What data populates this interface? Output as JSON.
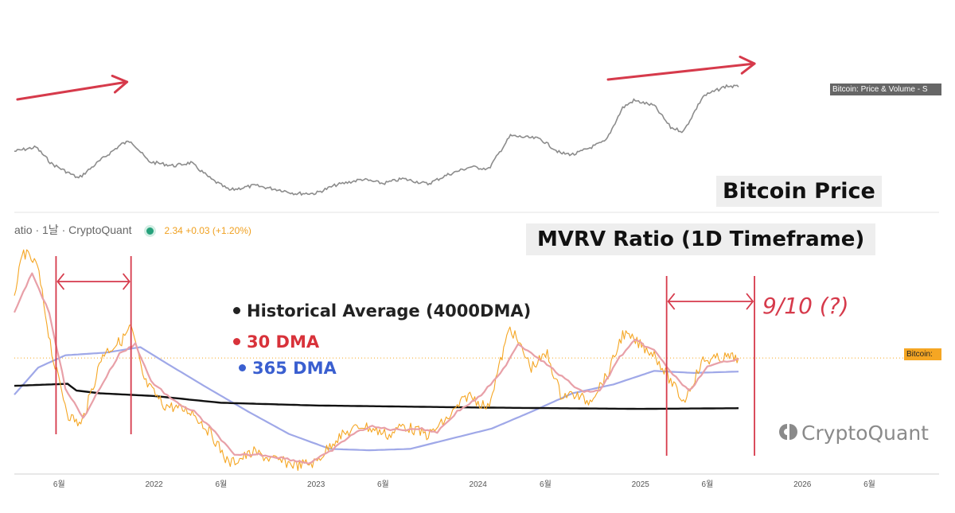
{
  "price_panel": {
    "label": "Bitcoin Price",
    "price_tag": "Bitcoin: Price & Volume - S"
  },
  "mvrv_panel": {
    "label": "MVRV Ratio (1D Timeframe)",
    "indicator_header": {
      "name": "atio · 1날 · CryptoQuant",
      "value": "2.34 +0.03 (+1.20%)"
    },
    "value_tag": "Bitcoin:"
  },
  "legend": [
    {
      "label": "Historical Average (4000DMA)",
      "color": "#222222"
    },
    {
      "label": "30 DMA",
      "color": "#d8323a"
    },
    {
      "label": "365 DMA",
      "color": "#3a5fd0"
    }
  ],
  "annotation": {
    "cycle_note": "9/10 (?)",
    "color": "#d63a4b"
  },
  "watermark": "CryptoQuant",
  "chart_data": {
    "type": "line",
    "title": "",
    "x_ticks": [
      {
        "date": "2021-06-01",
        "label": "6월"
      },
      {
        "date": "2022-01-01",
        "label": "2022"
      },
      {
        "date": "2022-06-01",
        "label": "6월"
      },
      {
        "date": "2023-01-01",
        "label": "2023"
      },
      {
        "date": "2023-06-01",
        "label": "6월"
      },
      {
        "date": "2024-01-01",
        "label": "2024"
      },
      {
        "date": "2024-06-01",
        "label": "6월"
      },
      {
        "date": "2025-01-01",
        "label": "2025"
      },
      {
        "date": "2025-06-01",
        "label": "6월"
      },
      {
        "date": "2026-01-01",
        "label": "2026"
      },
      {
        "date": "2026-06-01",
        "label": "6월"
      }
    ],
    "xlim": [
      "2021-02-20",
      "2026-11-05"
    ],
    "price": {
      "color": "#8c8c8c",
      "ylim": [
        15000,
        130000
      ],
      "points": [
        [
          "2021-02-20",
          57000
        ],
        [
          "2021-04-10",
          61000
        ],
        [
          "2021-05-15",
          45000
        ],
        [
          "2021-07-15",
          31000
        ],
        [
          "2021-09-01",
          48000
        ],
        [
          "2021-10-20",
          64000
        ],
        [
          "2021-11-10",
          67000
        ],
        [
          "2021-12-20",
          47000
        ],
        [
          "2022-02-15",
          43000
        ],
        [
          "2022-03-25",
          46000
        ],
        [
          "2022-05-10",
          30000
        ],
        [
          "2022-06-20",
          19500
        ],
        [
          "2022-08-15",
          24000
        ],
        [
          "2022-10-15",
          19500
        ],
        [
          "2022-11-15",
          16300
        ],
        [
          "2022-12-31",
          16500
        ],
        [
          "2023-02-15",
          24500
        ],
        [
          "2023-04-15",
          30000
        ],
        [
          "2023-06-01",
          26000
        ],
        [
          "2023-07-15",
          30500
        ],
        [
          "2023-09-10",
          25500
        ],
        [
          "2023-10-25",
          34500
        ],
        [
          "2023-12-15",
          42000
        ],
        [
          "2024-01-25",
          40000
        ],
        [
          "2024-03-14",
          72000
        ],
        [
          "2024-05-20",
          69000
        ],
        [
          "2024-07-05",
          55000
        ],
        [
          "2024-08-05",
          54000
        ],
        [
          "2024-10-15",
          67000
        ],
        [
          "2024-11-22",
          99000
        ],
        [
          "2024-12-17",
          106000
        ],
        [
          "2025-02-01",
          101000
        ],
        [
          "2025-03-10",
          80000
        ],
        [
          "2025-04-08",
          76000
        ],
        [
          "2025-05-22",
          110000
        ],
        [
          "2025-07-14",
          120000
        ],
        [
          "2025-08-10",
          119000
        ]
      ]
    },
    "mvrv": {
      "ylim": [
        0.7,
        4.1
      ],
      "current_value": 2.34,
      "series": [
        {
          "name": "MVRV Ratio",
          "color": "#f5a623",
          "points": [
            [
              "2021-02-20",
              3.3
            ],
            [
              "2021-03-13",
              3.9
            ],
            [
              "2021-04-13",
              3.7
            ],
            [
              "2021-05-19",
              2.3
            ],
            [
              "2021-06-22",
              1.5
            ],
            [
              "2021-07-20",
              1.35
            ],
            [
              "2021-08-20",
              2.0
            ],
            [
              "2021-09-07",
              2.4
            ],
            [
              "2021-10-20",
              2.6
            ],
            [
              "2021-11-10",
              2.8
            ],
            [
              "2021-12-10",
              2.0
            ],
            [
              "2022-01-22",
              1.65
            ],
            [
              "2022-03-28",
              1.55
            ],
            [
              "2022-05-12",
              1.2
            ],
            [
              "2022-06-18",
              0.78
            ],
            [
              "2022-08-14",
              0.95
            ],
            [
              "2022-09-20",
              0.85
            ],
            [
              "2022-11-21",
              0.76
            ],
            [
              "2022-12-31",
              0.8
            ],
            [
              "2023-02-15",
              1.15
            ],
            [
              "2023-04-14",
              1.35
            ],
            [
              "2023-06-15",
              1.2
            ],
            [
              "2023-07-15",
              1.35
            ],
            [
              "2023-09-11",
              1.2
            ],
            [
              "2023-10-25",
              1.45
            ],
            [
              "2023-12-10",
              1.8
            ],
            [
              "2024-01-23",
              1.6
            ],
            [
              "2024-03-13",
              2.8
            ],
            [
              "2024-04-30",
              2.2
            ],
            [
              "2024-06-05",
              2.4
            ],
            [
              "2024-07-05",
              1.8
            ],
            [
              "2024-08-05",
              1.8
            ],
            [
              "2024-09-06",
              1.7
            ],
            [
              "2024-10-20",
              2.1
            ],
            [
              "2024-11-22",
              2.7
            ],
            [
              "2024-12-17",
              2.6
            ],
            [
              "2025-02-01",
              2.4
            ],
            [
              "2025-03-10",
              2.0
            ],
            [
              "2025-04-08",
              1.7
            ],
            [
              "2025-05-22",
              2.3
            ],
            [
              "2025-07-14",
              2.35
            ],
            [
              "2025-08-10",
              2.34
            ]
          ]
        },
        {
          "name": "30 DMA",
          "color": "#e8a0a8",
          "points": [
            [
              "2021-02-20",
              3.0
            ],
            [
              "2021-04-01",
              3.6
            ],
            [
              "2021-05-10",
              3.0
            ],
            [
              "2021-06-15",
              1.9
            ],
            [
              "2021-07-25",
              1.45
            ],
            [
              "2021-09-01",
              1.9
            ],
            [
              "2021-10-15",
              2.4
            ],
            [
              "2021-11-20",
              2.55
            ],
            [
              "2021-12-25",
              2.0
            ],
            [
              "2022-02-15",
              1.7
            ],
            [
              "2022-04-01",
              1.55
            ],
            [
              "2022-05-25",
              1.2
            ],
            [
              "2022-07-01",
              0.9
            ],
            [
              "2022-08-25",
              0.92
            ],
            [
              "2022-10-15",
              0.87
            ],
            [
              "2022-12-15",
              0.79
            ],
            [
              "2023-01-31",
              0.95
            ],
            [
              "2023-03-20",
              1.2
            ],
            [
              "2023-05-01",
              1.33
            ],
            [
              "2023-07-01",
              1.28
            ],
            [
              "2023-08-20",
              1.3
            ],
            [
              "2023-10-01",
              1.25
            ],
            [
              "2023-11-15",
              1.55
            ],
            [
              "2024-01-01",
              1.75
            ],
            [
              "2024-02-20",
              2.1
            ],
            [
              "2024-03-31",
              2.55
            ],
            [
              "2024-05-15",
              2.35
            ],
            [
              "2024-07-01",
              2.1
            ],
            [
              "2024-08-20",
              1.85
            ],
            [
              "2024-10-01",
              1.85
            ],
            [
              "2024-11-15",
              2.35
            ],
            [
              "2024-12-20",
              2.6
            ],
            [
              "2025-02-01",
              2.45
            ],
            [
              "2025-03-15",
              2.1
            ],
            [
              "2025-04-20",
              1.85
            ],
            [
              "2025-06-01",
              2.2
            ],
            [
              "2025-07-15",
              2.3
            ],
            [
              "2025-08-10",
              2.33
            ]
          ]
        },
        {
          "name": "365 DMA",
          "color": "#9fa8e8",
          "points": [
            [
              "2021-02-20",
              1.8
            ],
            [
              "2021-04-15",
              2.2
            ],
            [
              "2021-06-15",
              2.38
            ],
            [
              "2021-09-15",
              2.42
            ],
            [
              "2021-12-01",
              2.5
            ],
            [
              "2022-02-01",
              2.25
            ],
            [
              "2022-05-01",
              1.9
            ],
            [
              "2022-08-01",
              1.55
            ],
            [
              "2022-11-01",
              1.22
            ],
            [
              "2023-02-01",
              1.0
            ],
            [
              "2023-05-01",
              0.98
            ],
            [
              "2023-08-01",
              1.0
            ],
            [
              "2023-11-01",
              1.15
            ],
            [
              "2024-02-01",
              1.3
            ],
            [
              "2024-05-01",
              1.55
            ],
            [
              "2024-08-01",
              1.82
            ],
            [
              "2024-11-01",
              1.95
            ],
            [
              "2025-02-01",
              2.15
            ],
            [
              "2025-05-01",
              2.12
            ],
            [
              "2025-08-10",
              2.14
            ]
          ]
        },
        {
          "name": "Historical Average (4000DMA)",
          "color": "#111111",
          "points": [
            [
              "2021-02-20",
              1.93
            ],
            [
              "2021-06-20",
              1.96
            ],
            [
              "2021-07-10",
              1.86
            ],
            [
              "2021-09-01",
              1.82
            ],
            [
              "2022-01-01",
              1.78
            ],
            [
              "2022-06-01",
              1.68
            ],
            [
              "2023-01-01",
              1.64
            ],
            [
              "2024-01-01",
              1.61
            ],
            [
              "2025-01-01",
              1.59
            ],
            [
              "2025-08-10",
              1.6
            ]
          ]
        }
      ]
    },
    "annotations": [
      {
        "type": "cycle-bracket",
        "from": "2021-05-25",
        "to": "2021-11-10"
      },
      {
        "type": "cycle-bracket",
        "from": "2025-03-01",
        "to": "2025-09-15"
      }
    ],
    "trend_arrows": [
      {
        "from": "2021-02-27",
        "to": "2021-11-01"
      },
      {
        "from": "2024-10-20",
        "to": "2025-09-15"
      }
    ]
  }
}
